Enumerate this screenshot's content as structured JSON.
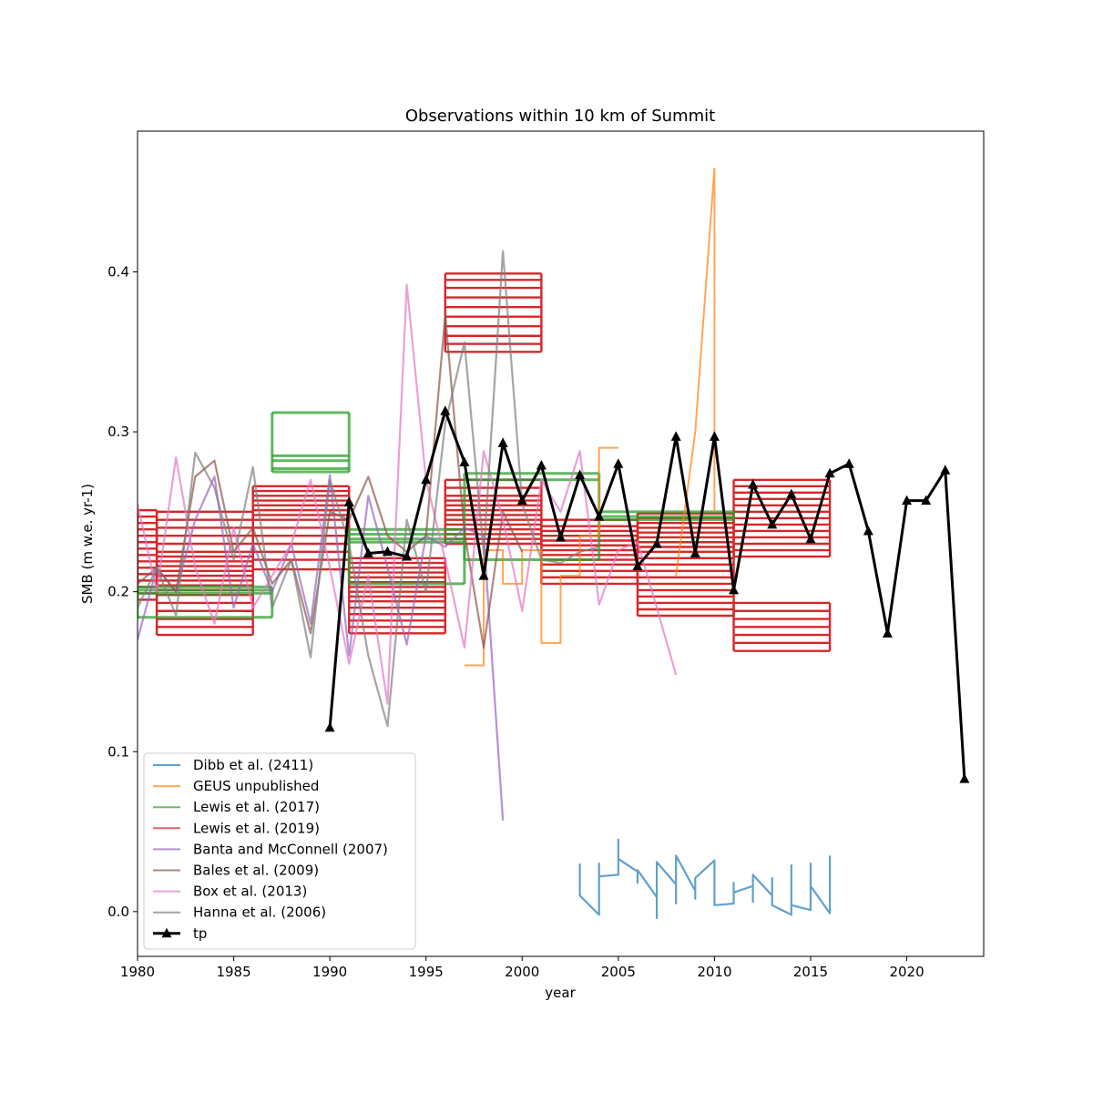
{
  "chart_data": {
    "type": "line",
    "title": "Observations within 10 km of Summit",
    "xlabel": "year",
    "ylabel": "SMB (m w.e. yr-1)",
    "xlim": [
      1980,
      2024
    ],
    "ylim": [
      -0.028,
      0.488
    ],
    "x_ticks": [
      1980,
      1985,
      1990,
      1995,
      2000,
      2005,
      2010,
      2015,
      2020
    ],
    "y_ticks": [
      0.0,
      0.1,
      0.2,
      0.3,
      0.4
    ],
    "y_tick_labels": [
      "0.0",
      "0.1",
      "0.2",
      "0.3",
      "0.4"
    ],
    "grid": false,
    "legend_position": "lower-left",
    "legend": [
      {
        "label": "Dibb et al. (2411)",
        "color": "#1f77b4",
        "marker": false,
        "bold": false
      },
      {
        "label": "GEUS unpublished",
        "color": "#ff7f0e",
        "marker": false,
        "bold": false
      },
      {
        "label": "Lewis et al. (2017)",
        "color": "#2ca02c",
        "marker": false,
        "bold": false
      },
      {
        "label": "Lewis et al. (2019)",
        "color": "#d62728",
        "marker": false,
        "bold": false
      },
      {
        "label": "Banta and McConnell (2007)",
        "color": "#9467bd",
        "marker": false,
        "bold": false
      },
      {
        "label": "Bales et al. (2009)",
        "color": "#8c564b",
        "marker": false,
        "bold": false
      },
      {
        "label": "Box et al. (2013)",
        "color": "#e377c2",
        "marker": false,
        "bold": false
      },
      {
        "label": "Hanna et al. (2006)",
        "color": "#7f7f7f",
        "marker": false,
        "bold": false
      },
      {
        "label": "tp",
        "color": "#000000",
        "marker": true,
        "bold": true
      }
    ],
    "series": [
      {
        "name": "Lewis et al. (2019)",
        "color": "#d62728",
        "style": "step-blocks",
        "blocks": [
          {
            "x0": 1980,
            "x1": 1981,
            "values": [
              0.251,
              0.247,
              0.243,
              0.239,
              0.235,
              0.231,
              0.227,
              0.223,
              0.219,
              0.215,
              0.211,
              0.207,
              0.203,
              0.199,
              0.195
            ]
          },
          {
            "x0": 1981,
            "x1": 1986,
            "values": [
              0.25,
              0.245,
              0.24,
              0.235,
              0.23,
              0.225,
              0.222,
              0.219,
              0.216,
              0.213,
              0.21,
              0.207,
              0.204,
              0.201,
              0.198,
              0.193,
              0.188,
              0.183,
              0.178,
              0.173
            ]
          },
          {
            "x0": 1986,
            "x1": 1991,
            "values": [
              0.266,
              0.263,
              0.26,
              0.257,
              0.254,
              0.251,
              0.248,
              0.245,
              0.24,
              0.235,
              0.23,
              0.225,
              0.22,
              0.214
            ]
          },
          {
            "x0": 1991,
            "x1": 1996,
            "values": [
              0.221,
              0.218,
              0.215,
              0.212,
              0.209,
              0.206,
              0.203,
              0.2,
              0.197,
              0.194,
              0.19,
              0.186,
              0.182,
              0.178,
              0.174
            ]
          },
          {
            "x0": 1996,
            "x1": 2001,
            "values": [
              0.399,
              0.395,
              0.39,
              0.384,
              0.378,
              0.372,
              0.366,
              0.36,
              0.355,
              0.35
            ]
          },
          {
            "x0": 1996,
            "x1": 2001,
            "values": [
              0.27,
              0.265,
              0.26,
              0.257,
              0.254,
              0.251,
              0.248,
              0.245,
              0.242,
              0.239,
              0.236,
              0.233,
              0.23
            ]
          },
          {
            "x0": 2001,
            "x1": 2006,
            "values": [
              0.245,
              0.241,
              0.238,
              0.235,
              0.232,
              0.229,
              0.226,
              0.223,
              0.22,
              0.217,
              0.213,
              0.209,
              0.205
            ]
          },
          {
            "x0": 2006,
            "x1": 2011,
            "values": [
              0.249,
              0.246,
              0.243,
              0.24,
              0.237,
              0.234,
              0.231,
              0.228,
              0.225,
              0.221,
              0.217,
              0.213,
              0.209,
              0.205,
              0.201,
              0.197,
              0.193,
              0.189,
              0.185
            ]
          },
          {
            "x0": 2011,
            "x1": 2016,
            "values": [
              0.27,
              0.266,
              0.262,
              0.258,
              0.254,
              0.25,
              0.246,
              0.242,
              0.238,
              0.234,
              0.23,
              0.226,
              0.222
            ]
          },
          {
            "x0": 2011,
            "x1": 2016,
            "values": [
              0.193,
              0.188,
              0.183,
              0.178,
              0.173,
              0.168,
              0.163
            ]
          }
        ]
      },
      {
        "name": "Lewis et al. (2017)",
        "color": "#2ca02c",
        "style": "step-blocks",
        "blocks": [
          {
            "x0": 1980,
            "x1": 1987,
            "values": [
              0.203,
              0.201,
              0.199,
              0.184
            ]
          },
          {
            "x0": 1987,
            "x1": 1991,
            "values": [
              0.312,
              0.285,
              0.282,
              0.277,
              0.275
            ]
          },
          {
            "x0": 1991,
            "x1": 1997,
            "values": [
              0.239,
              0.236,
              0.233,
              0.231,
              0.205
            ]
          },
          {
            "x0": 1997,
            "x1": 2004,
            "values": [
              0.274,
              0.27,
              0.22
            ]
          },
          {
            "x0": 2004,
            "x1": 2011,
            "values": [
              0.25,
              0.247,
              0.245
            ]
          }
        ]
      },
      {
        "name": "GEUS unpublished",
        "color": "#ff7f0e",
        "style": "steps",
        "x": [
          1997,
          1998,
          1998,
          1999,
          1999,
          2000,
          2000,
          2001,
          2001,
          2002,
          2002,
          2003,
          2003,
          2004,
          2004,
          2005
        ],
        "y": [
          0.154,
          0.154,
          0.226,
          0.226,
          0.205,
          0.205,
          0.226,
          0.226,
          0.168,
          0.168,
          0.21,
          0.21,
          0.235,
          0.235,
          0.29,
          0.29
        ],
        "extra_x": [
          2008,
          2009,
          2010,
          2010
        ],
        "extra_y": [
          0.21,
          0.3,
          0.465,
          0.25
        ]
      },
      {
        "name": "Banta and McConnell (2007)",
        "color": "#9467bd",
        "style": "line",
        "x": [
          1980,
          1981,
          1982,
          1983,
          1984,
          1985,
          1986,
          1987,
          1988,
          1989,
          1990,
          1991,
          1992,
          1993,
          1994,
          1995,
          1996,
          1997,
          1998,
          1999
        ],
        "y": [
          0.17,
          0.215,
          0.2,
          0.245,
          0.272,
          0.19,
          0.23,
          0.2,
          0.23,
          0.18,
          0.273,
          0.16,
          0.26,
          0.215,
          0.167,
          0.235,
          0.228,
          0.24,
          0.235,
          0.057
        ]
      },
      {
        "name": "Bales et al. (2009)",
        "color": "#8c564b",
        "style": "line",
        "x": [
          1980,
          1981,
          1982,
          1983,
          1984,
          1985,
          1986,
          1987,
          1988,
          1989,
          1990,
          1991,
          1992,
          1993,
          1994,
          1995,
          1996,
          1997,
          1998,
          1999,
          2000
        ],
        "y": [
          0.205,
          0.215,
          0.2,
          0.272,
          0.282,
          0.225,
          0.24,
          0.205,
          0.22,
          0.174,
          0.25,
          0.245,
          0.272,
          0.235,
          0.225,
          0.235,
          0.373,
          0.237,
          0.165,
          0.25,
          0.225
        ]
      },
      {
        "name": "Box et al. (2013)",
        "color": "#e377c2",
        "style": "line",
        "x": [
          1980,
          1981,
          1982,
          1983,
          1984,
          1985,
          1986,
          1987,
          1988,
          1989,
          1990,
          1991,
          1992,
          1993,
          1994,
          1995,
          1996,
          1997,
          1998,
          1999,
          2000,
          2001,
          2002,
          2003,
          2004,
          2005,
          2006,
          2007,
          2008
        ],
        "y": [
          0.255,
          0.2,
          0.284,
          0.215,
          0.18,
          0.24,
          0.19,
          0.21,
          0.23,
          0.27,
          0.215,
          0.155,
          0.21,
          0.13,
          0.392,
          0.27,
          0.22,
          0.165,
          0.288,
          0.245,
          0.188,
          0.27,
          0.25,
          0.288,
          0.192,
          0.226,
          0.231,
          0.19,
          0.148
        ]
      },
      {
        "name": "Hanna et al. (2006)",
        "color": "#7f7f7f",
        "style": "line",
        "x": [
          1980,
          1981,
          1982,
          1983,
          1984,
          1985,
          1986,
          1987,
          1988,
          1989,
          1990,
          1991,
          1992,
          1993,
          1994,
          1995,
          1996,
          1997,
          1998,
          1999,
          2000,
          2001,
          2002,
          2003,
          2004
        ],
        "y": [
          0.19,
          0.215,
          0.185,
          0.287,
          0.265,
          0.22,
          0.278,
          0.19,
          0.22,
          0.159,
          0.27,
          0.23,
          0.16,
          0.116,
          0.245,
          0.2,
          0.305,
          0.356,
          0.224,
          0.413,
          0.255,
          0.22,
          0.218,
          0.225,
          0.228
        ]
      },
      {
        "name": "Dibb et al. (2411)",
        "color": "#1f77b4",
        "style": "line",
        "x": [
          2003,
          2003,
          2004,
          2004,
          2004,
          2005,
          2005,
          2005,
          2006,
          2006,
          2006,
          2007,
          2007,
          2007,
          2008,
          2008,
          2008,
          2009,
          2009,
          2009,
          2010,
          2010,
          2011,
          2011,
          2011,
          2012,
          2012,
          2012,
          2013,
          2013,
          2013,
          2014,
          2014,
          2014,
          2015,
          2015,
          2015,
          2016,
          2016
        ],
        "y": [
          0.03,
          0.01,
          -0.002,
          0.03,
          0.022,
          0.023,
          0.045,
          0.033,
          0.025,
          0.018,
          0.026,
          0.009,
          -0.004,
          0.031,
          0.017,
          0.005,
          0.035,
          0.013,
          0.008,
          0.021,
          0.032,
          0.004,
          0.005,
          0.018,
          0.012,
          0.016,
          0.006,
          0.023,
          0.01,
          0.021,
          0.004,
          -0.002,
          0.029,
          0.004,
          0.001,
          0.03,
          0.016,
          -0.001,
          0.035
        ]
      },
      {
        "name": "tp",
        "color": "#000000",
        "style": "line-marker",
        "x": [
          1990,
          1991,
          1992,
          1993,
          1994,
          1995,
          1996,
          1997,
          1998,
          1999,
          2000,
          2001,
          2002,
          2003,
          2004,
          2005,
          2006,
          2007,
          2008,
          2009,
          2010,
          2011,
          2012,
          2013,
          2014,
          2015,
          2016,
          2017,
          2018,
          2019,
          2020,
          2021,
          2022,
          2023
        ],
        "y": [
          0.115,
          0.256,
          0.224,
          0.225,
          0.222,
          0.27,
          0.313,
          0.281,
          0.21,
          0.293,
          0.257,
          0.279,
          0.234,
          0.273,
          0.247,
          0.28,
          0.216,
          0.23,
          0.297,
          0.224,
          0.297,
          0.201,
          0.267,
          0.242,
          0.261,
          0.233,
          0.274,
          0.28,
          0.238,
          0.174,
          0.257,
          0.257,
          0.276,
          0.083
        ]
      }
    ]
  }
}
